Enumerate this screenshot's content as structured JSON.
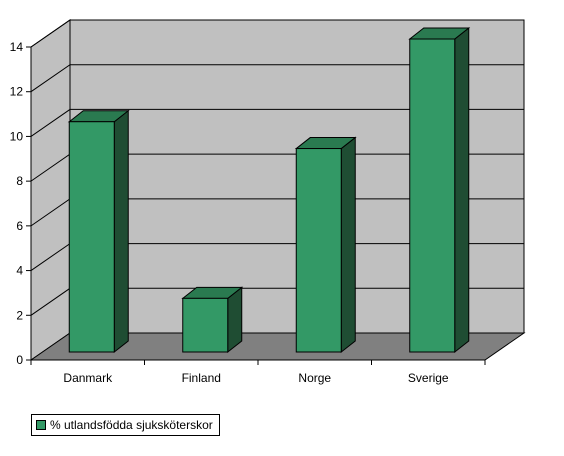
{
  "chart_data": {
    "type": "bar",
    "three_d": true,
    "categories": [
      "Danmark",
      "Finland",
      "Norge",
      "Sverige"
    ],
    "series": [
      {
        "name": "% utlandsfödda sjuksköterskor",
        "values": [
          10.3,
          2.4,
          9.1,
          14.0
        ]
      }
    ],
    "title": "",
    "xlabel": "",
    "ylabel": "",
    "ylim": [
      0,
      14
    ],
    "yticks": [
      0,
      2,
      4,
      6,
      8,
      10,
      12,
      14
    ],
    "grid": true,
    "legend_position": "bottom-left",
    "colors": {
      "bar_front": "#339966",
      "bar_side": "#1f4d33",
      "bar_top": "#2a7a50",
      "wall": "#c0c0c0",
      "floor": "#808080",
      "gridline": "#000000"
    }
  }
}
